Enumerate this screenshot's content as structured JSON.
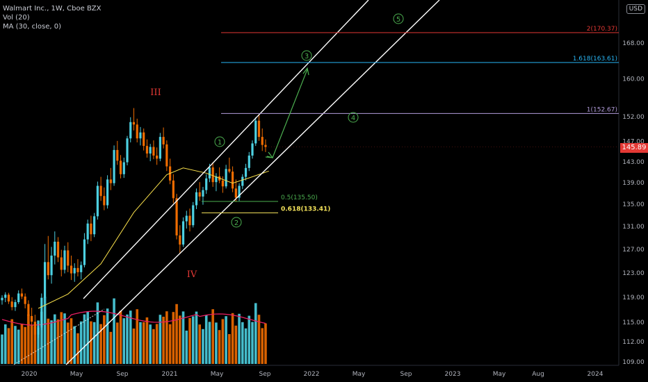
{
  "legend": {
    "title": "Walmart Inc., 1W, Cboe BZX",
    "vol": "Vol (20)",
    "ma": "MA (30, close, 0)"
  },
  "currency": "USD",
  "last_price": "145.89",
  "colors": {
    "up": "#4dd0e1",
    "down": "#ef6c00",
    "ma": "#f9e04b",
    "vol_ma": "#e91e63",
    "channel": "#ffffff",
    "wave_green": "#4caf50",
    "wave_red": "#e53935",
    "fib_2": "#e53935",
    "fib_1618": "#29b6f6",
    "fib_1": "#b39ddb",
    "fib_05": "#4caf50",
    "fib_0618": "#f1e05a"
  },
  "chart_data": {
    "type": "candlestick",
    "title": "Walmart Inc., 1W, Cboe BZX",
    "price_scale": "log",
    "y_ticks": [
      "109.00",
      "112.00",
      "115.00",
      "119.00",
      "123.00",
      "127.00",
      "131.00",
      "135.00",
      "139.00",
      "143.00",
      "147.00",
      "152.00",
      "160.00",
      "168.00"
    ],
    "x_ticks": [
      "2020",
      "May",
      "Sep",
      "2021",
      "May",
      "Sep",
      "2022",
      "May",
      "Sep",
      "2023",
      "May",
      "Aug",
      "2024"
    ],
    "candles": [
      [
        118.5,
        119.3,
        117.8,
        118.9
      ],
      [
        118.9,
        119.8,
        118.2,
        119.4
      ],
      [
        119.4,
        119.7,
        117.9,
        118.3
      ],
      [
        118.3,
        119.0,
        116.9,
        117.4
      ],
      [
        117.4,
        118.6,
        116.8,
        118.2
      ],
      [
        118.2,
        120.1,
        117.9,
        119.6
      ],
      [
        119.6,
        120.4,
        118.7,
        119.1
      ],
      [
        119.1,
        119.6,
        117.2,
        117.9
      ],
      [
        117.9,
        118.5,
        115.4,
        116.0
      ],
      [
        116.0,
        117.3,
        114.6,
        115.1
      ],
      [
        115.1,
        116.2,
        112.2,
        113.1
      ],
      [
        113.1,
        114.8,
        112.6,
        114.2
      ],
      [
        114.2,
        119.6,
        113.8,
        118.9
      ],
      [
        118.9,
        127.9,
        118.1,
        124.8
      ],
      [
        124.8,
        129.3,
        121.9,
        122.6
      ],
      [
        122.6,
        127.4,
        121.2,
        125.9
      ],
      [
        125.9,
        130.1,
        124.4,
        128.3
      ],
      [
        128.3,
        129.1,
        124.8,
        125.6
      ],
      [
        125.6,
        126.9,
        122.4,
        123.5
      ],
      [
        123.5,
        127.6,
        122.9,
        126.8
      ],
      [
        126.8,
        128.2,
        123.1,
        124.2
      ],
      [
        124.2,
        125.9,
        121.8,
        122.9
      ],
      [
        122.9,
        124.6,
        121.5,
        123.8
      ],
      [
        123.8,
        125.3,
        122.4,
        123.1
      ],
      [
        123.1,
        124.9,
        121.9,
        124.3
      ],
      [
        124.3,
        129.8,
        123.9,
        128.7
      ],
      [
        128.7,
        132.2,
        127.9,
        131.5
      ],
      [
        131.5,
        132.9,
        128.4,
        129.6
      ],
      [
        129.6,
        133.4,
        129.1,
        132.8
      ],
      [
        132.8,
        139.2,
        132.2,
        138.4
      ],
      [
        138.4,
        140.1,
        135.6,
        136.5
      ],
      [
        136.5,
        138.1,
        133.9,
        134.8
      ],
      [
        134.8,
        140.4,
        134.2,
        139.6
      ],
      [
        139.6,
        141.8,
        137.6,
        138.9
      ],
      [
        138.9,
        146.2,
        138.4,
        145.3
      ],
      [
        145.3,
        147.1,
        142.4,
        143.2
      ],
      [
        143.2,
        144.3,
        139.8,
        140.6
      ],
      [
        140.6,
        143.8,
        139.9,
        142.9
      ],
      [
        142.9,
        148.1,
        142.3,
        147.6
      ],
      [
        147.6,
        151.9,
        146.8,
        150.9
      ],
      [
        150.9,
        153.8,
        149.2,
        150.4
      ],
      [
        150.4,
        151.6,
        146.8,
        147.6
      ],
      [
        147.6,
        149.9,
        146.2,
        148.8
      ],
      [
        148.8,
        149.6,
        145.2,
        146.1
      ],
      [
        146.1,
        147.4,
        143.8,
        144.6
      ],
      [
        144.6,
        146.5,
        143.1,
        145.9
      ],
      [
        145.9,
        147.2,
        143.5,
        144.2
      ],
      [
        144.2,
        145.8,
        142.4,
        143.6
      ],
      [
        143.6,
        148.7,
        143.1,
        147.9
      ],
      [
        147.9,
        149.8,
        145.6,
        146.4
      ],
      [
        146.4,
        147.2,
        141.2,
        142.1
      ],
      [
        142.1,
        143.6,
        138.7,
        139.4
      ],
      [
        139.4,
        140.6,
        135.2,
        136.1
      ],
      [
        136.1,
        136.9,
        128.7,
        129.4
      ],
      [
        129.4,
        131.2,
        126.3,
        127.8
      ],
      [
        127.8,
        132.6,
        127.4,
        131.9
      ],
      [
        131.9,
        133.8,
        130.6,
        132.9
      ],
      [
        132.9,
        134.2,
        130.1,
        131.2
      ],
      [
        131.2,
        135.4,
        130.8,
        134.8
      ],
      [
        134.8,
        137.9,
        134.1,
        137.2
      ],
      [
        137.2,
        139.1,
        135.6,
        136.4
      ],
      [
        136.4,
        138.2,
        134.9,
        137.6
      ],
      [
        137.6,
        140.6,
        136.9,
        139.8
      ],
      [
        139.8,
        142.6,
        139.1,
        141.9
      ],
      [
        141.9,
        142.9,
        138.2,
        139.1
      ],
      [
        139.1,
        140.8,
        137.4,
        140.2
      ],
      [
        140.2,
        141.9,
        138.9,
        139.4
      ],
      [
        139.4,
        140.2,
        137.1,
        138.3
      ],
      [
        138.3,
        142.4,
        137.9,
        141.6
      ],
      [
        141.6,
        143.8,
        140.8,
        141.1
      ],
      [
        141.1,
        142.1,
        137.2,
        137.9
      ],
      [
        137.9,
        139.6,
        135.4,
        136.2
      ],
      [
        136.2,
        138.9,
        135.6,
        138.4
      ],
      [
        138.4,
        140.6,
        137.8,
        140.1
      ],
      [
        140.1,
        142.6,
        139.4,
        141.8
      ],
      [
        141.8,
        144.9,
        141.2,
        144.2
      ],
      [
        144.2,
        147.2,
        143.6,
        146.6
      ],
      [
        146.6,
        151.9,
        146.1,
        151.2
      ],
      [
        151.2,
        152.4,
        147.1,
        147.9
      ],
      [
        147.9,
        149.6,
        145.1,
        146.3
      ],
      [
        146.3,
        147.4,
        144.9,
        145.89
      ]
    ],
    "ma30": [
      [
        11,
        117.2
      ],
      [
        20,
        119.5
      ],
      [
        30,
        124.5
      ],
      [
        40,
        133.5
      ],
      [
        50,
        140.5
      ],
      [
        55,
        141.8
      ],
      [
        62,
        140.8
      ],
      [
        70,
        138.9
      ],
      [
        75,
        139.9
      ],
      [
        81,
        141.2
      ]
    ],
    "fib_levels": [
      {
        "label": "2(170.37)",
        "value": 170.37
      },
      {
        "label": "1.618(163.61)",
        "value": 163.61
      },
      {
        "label": "1(152.67)",
        "value": 152.67
      },
      {
        "label": "0.5(135.50)",
        "value": 135.5
      },
      {
        "label": "0.618(133.41)",
        "value": 133.41
      }
    ],
    "wave_labels": {
      "III": "III",
      "IV": "IV",
      "w1": "1",
      "w2": "2",
      "w3": "3",
      "w4": "4",
      "w5": "5"
    }
  }
}
